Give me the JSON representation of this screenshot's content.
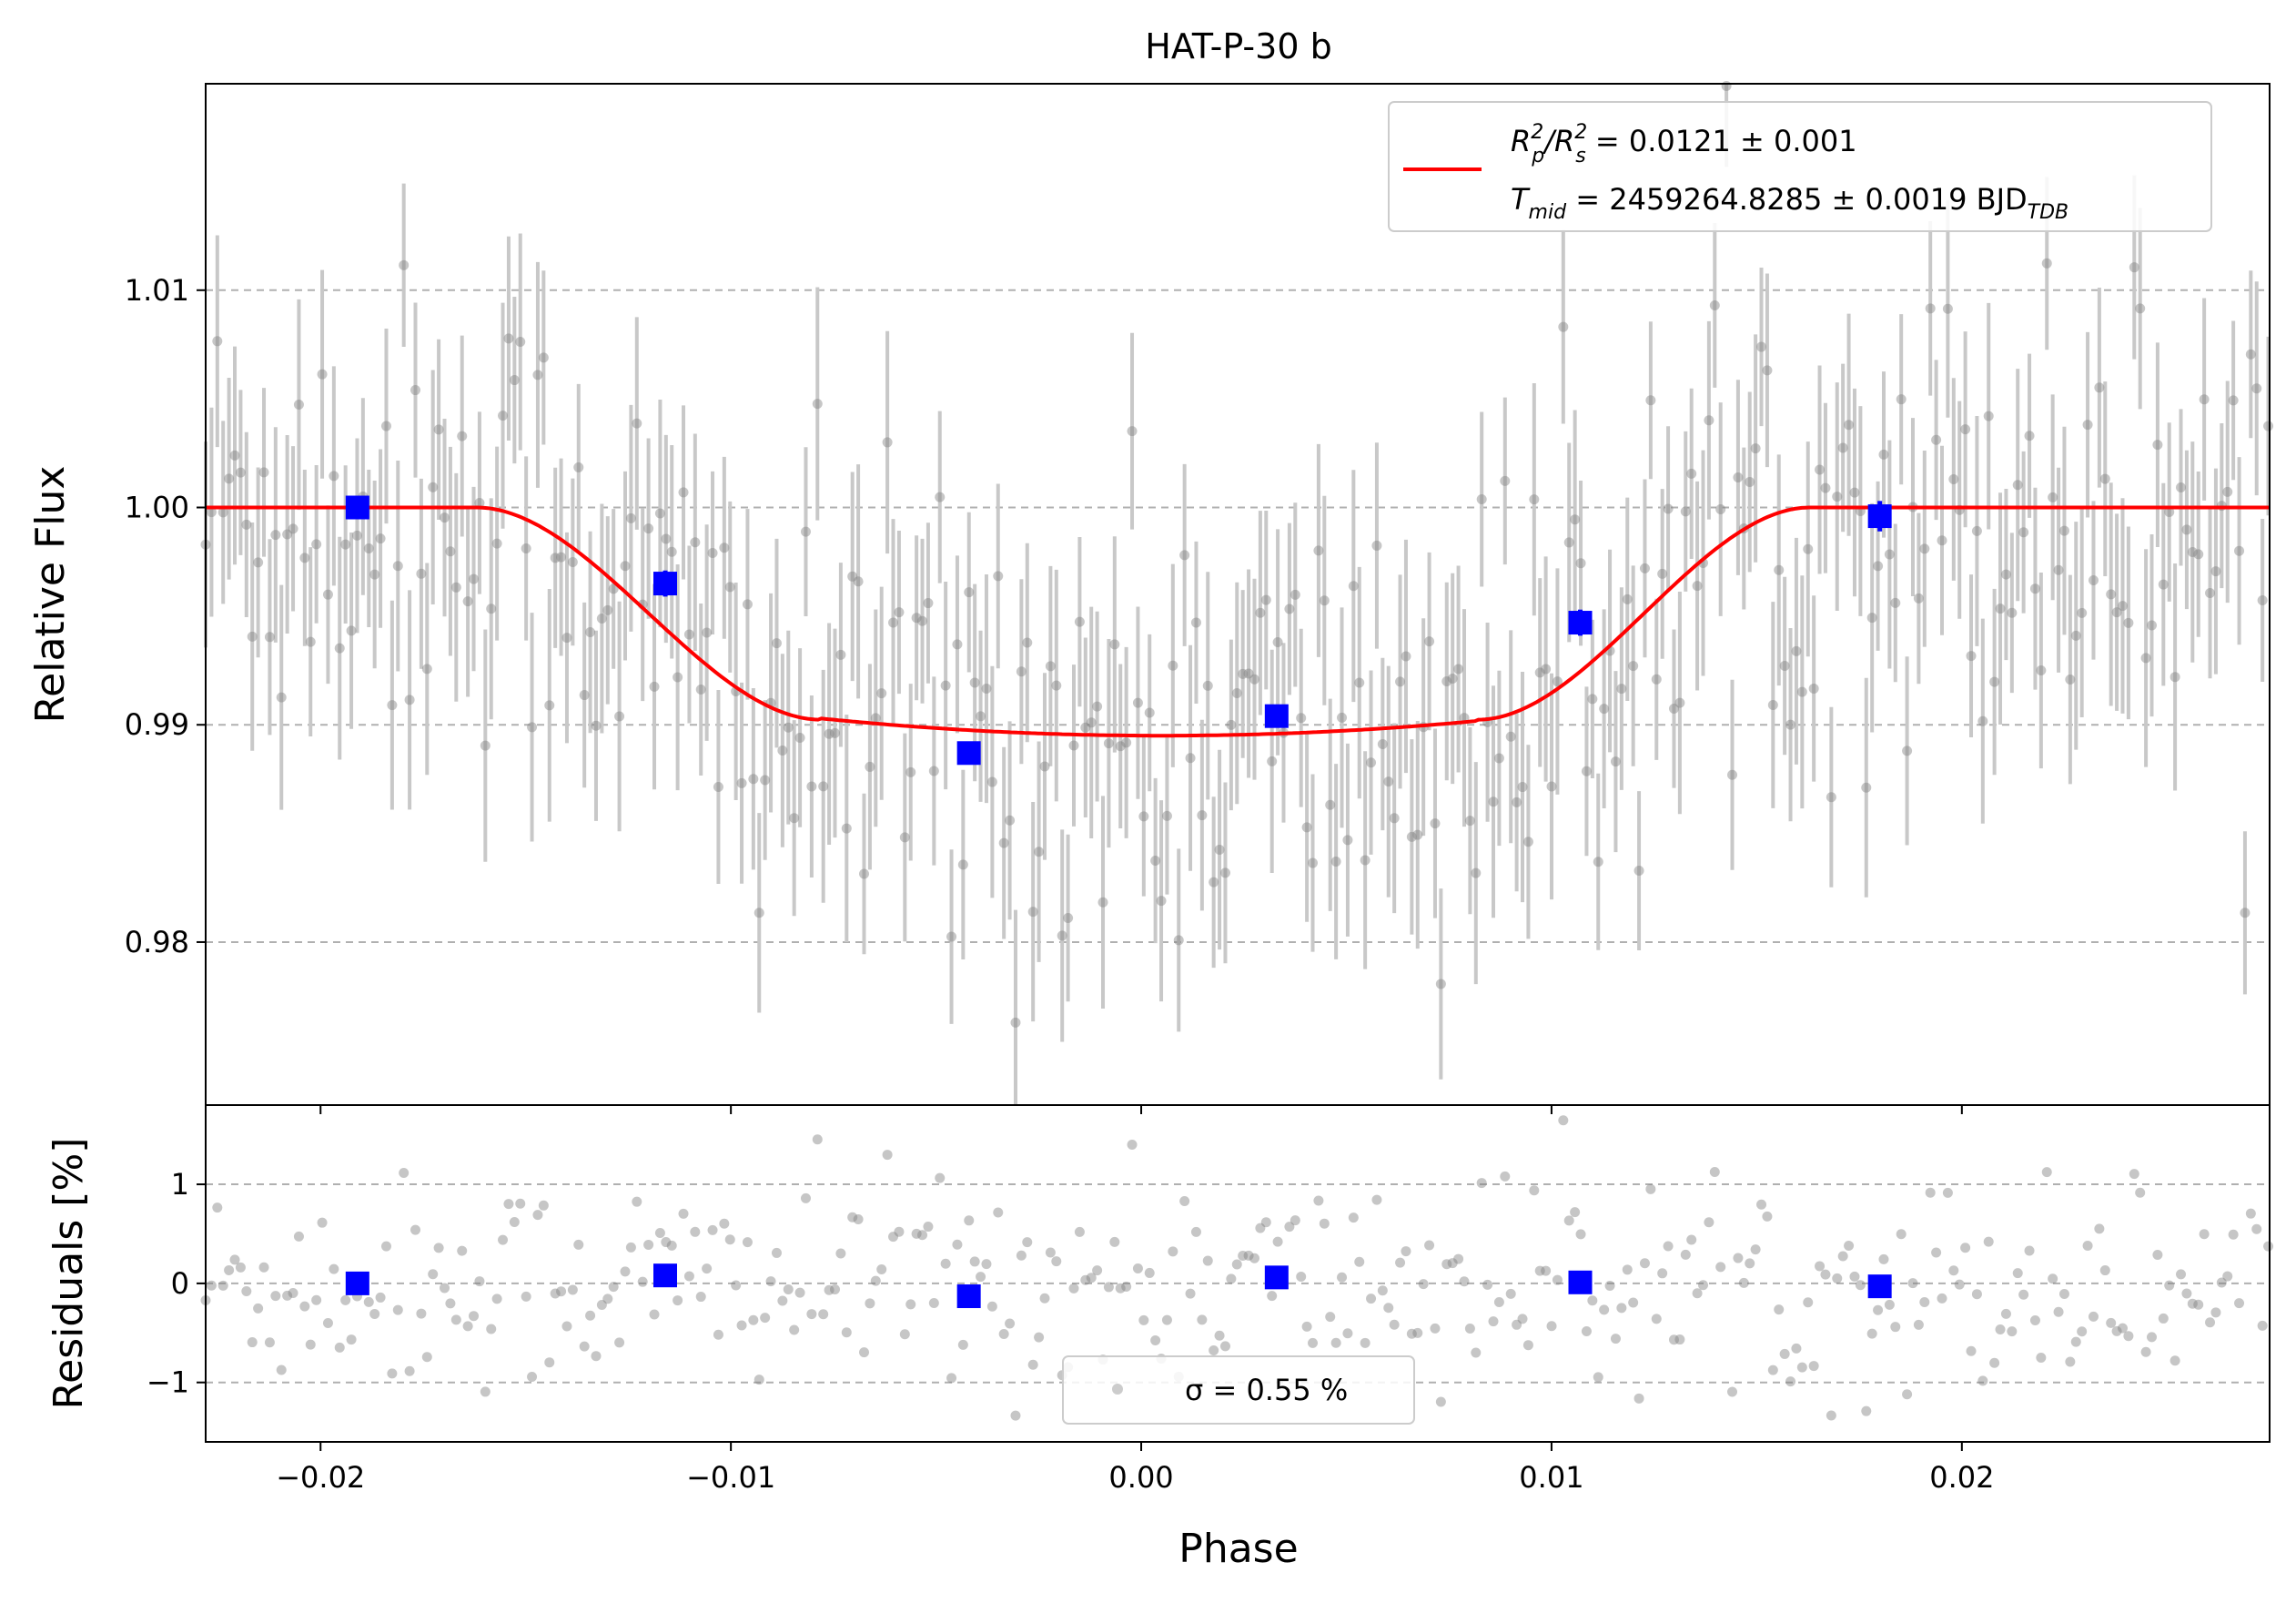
{
  "chart_data": [
    {
      "type": "scatter",
      "panel": "top",
      "title": "HAT-P-30 b",
      "xlabel": "",
      "ylabel": "Relative Flux",
      "xlim": [
        -0.0228,
        0.0275
      ],
      "ylim": [
        0.9725,
        1.0195
      ],
      "xticks": [
        -0.02,
        -0.01,
        0.0,
        0.01,
        0.02
      ],
      "xtick_labels": [
        "−0.02",
        "−0.01",
        "0.00",
        "0.01",
        "0.02"
      ],
      "yticks": [
        0.98,
        0.99,
        1.0,
        1.01
      ],
      "ytick_labels": [
        "0.98",
        "0.99",
        "1.00",
        "1.01"
      ],
      "grid": "horizontal dashed",
      "legend_location": "top-right",
      "legend": {
        "line1_prefix": "R",
        "line1_sub1": "p",
        "line1_sup1": "2",
        "line1_slash": "/R",
        "line1_sub2": "s",
        "line1_sup2": "2",
        "line1_value": " = 0.0121 ± 0.001",
        "line2_prefix": "T",
        "line2_sub": "mid",
        "line2_value": " = 2459264.8285 ± 0.0019 BJD",
        "line2_unit_sub": "TDB"
      },
      "model": {
        "color": "#ff0000",
        "depth": 0.0105,
        "t1": -0.0162,
        "t2": -0.0078,
        "t3": 0.0082,
        "t4": 0.0163,
        "center": 0.0005
      },
      "raw_points": {
        "color": "#808080",
        "errorbar_color": "#c8c8c8",
        "x_start": -0.0228,
        "x_step": 0.000142,
        "count": 356,
        "typical_error": 0.0045
      },
      "binned": {
        "color": "#0000ff",
        "x": [
          -0.0191,
          -0.0116,
          -0.0042,
          0.0033,
          0.0107,
          0.018
        ],
        "y": [
          1.0,
          0.9965,
          0.9887,
          0.9904,
          0.9947,
          0.9996
        ],
        "err": [
          0.0005,
          0.0006,
          0.0005,
          0.0005,
          0.0006,
          0.0007
        ]
      }
    },
    {
      "type": "scatter",
      "panel": "bottom",
      "xlabel": "Phase",
      "ylabel": "Residuals [%]",
      "xlim": [
        -0.0228,
        0.0275
      ],
      "ylim": [
        -1.6,
        1.8
      ],
      "yticks": [
        -1,
        0,
        1
      ],
      "ytick_labels": [
        "−1",
        "0",
        "1"
      ],
      "grid": "horizontal dashed",
      "legend_location": "bottom-center",
      "legend_label": "σ = 0.55 %",
      "binned": {
        "color": "#0000ff",
        "x": [
          -0.0191,
          -0.0116,
          -0.0042,
          0.0033,
          0.0107,
          0.018
        ],
        "y": [
          0.0,
          0.08,
          -0.13,
          0.06,
          0.01,
          -0.03
        ]
      },
      "residual_sigma": 0.55
    }
  ]
}
